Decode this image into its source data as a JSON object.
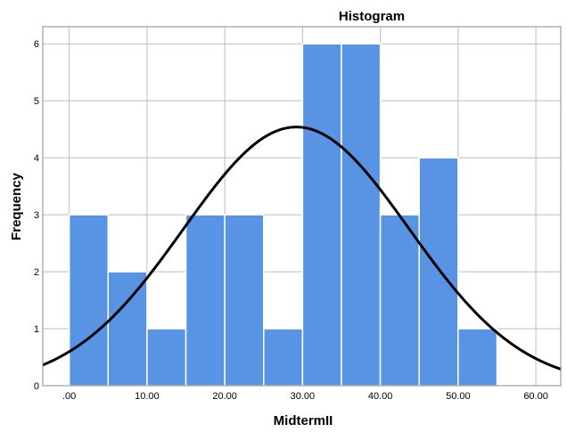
{
  "chart_data": {
    "type": "bar",
    "title": "Histogram",
    "xlabel": "MidtermII",
    "ylabel": "Frequency",
    "xlim": [
      -3.4,
      63.2
    ],
    "ylim": [
      0,
      6.3
    ],
    "x_ticks": [
      0,
      10,
      20,
      30,
      40,
      50,
      60
    ],
    "x_tick_labels": [
      ".00",
      "10.00",
      "20.00",
      "30.00",
      "40.00",
      "50.00",
      "60.00"
    ],
    "y_ticks": [
      0,
      1,
      2,
      3,
      4,
      5,
      6
    ],
    "y_tick_labels": [
      "0",
      "1",
      "2",
      "3",
      "4",
      "5",
      "6"
    ],
    "bins": [
      {
        "start": 0,
        "end": 5,
        "count": 3
      },
      {
        "start": 5,
        "end": 10,
        "count": 2
      },
      {
        "start": 10,
        "end": 15,
        "count": 1
      },
      {
        "start": 15,
        "end": 20,
        "count": 3
      },
      {
        "start": 20,
        "end": 25,
        "count": 3
      },
      {
        "start": 25,
        "end": 30,
        "count": 1
      },
      {
        "start": 30,
        "end": 35,
        "count": 6
      },
      {
        "start": 35,
        "end": 40,
        "count": 6
      },
      {
        "start": 40,
        "end": 45,
        "count": 3
      },
      {
        "start": 45,
        "end": 50,
        "count": 4
      },
      {
        "start": 50,
        "end": 55,
        "count": 1
      }
    ],
    "normal_curve": {
      "mean": 29.2,
      "sd": 14.5,
      "n": 33,
      "bin_width": 5
    },
    "grid": true,
    "colors": {
      "bar": "#5894e3",
      "curve": "#000000",
      "grid": "#bdbdbd"
    }
  }
}
